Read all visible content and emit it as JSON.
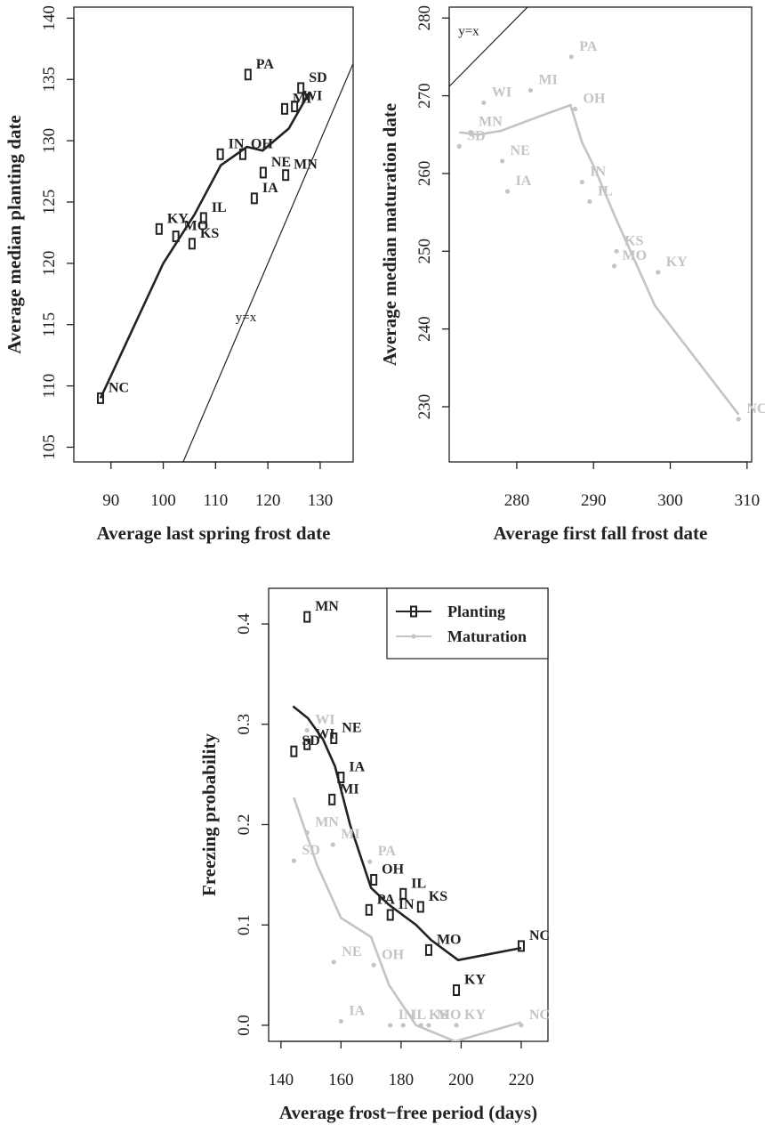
{
  "chart_data": [
    {
      "type": "scatter",
      "x_label": "Average last spring frost date",
      "y_label": "Average median planting date",
      "xlim": [
        82.9,
        136.3
      ],
      "ylim": [
        103.8,
        140.9
      ],
      "xticks": [
        90,
        100,
        110,
        120,
        130
      ],
      "yticks": [
        105,
        110,
        115,
        120,
        125,
        130,
        135,
        140
      ],
      "identity_line": true,
      "annotation": "y=x",
      "series": [
        {
          "color": "#222222",
          "marker": "rect",
          "labels": [
            "NC",
            "KY",
            "MO",
            "KS",
            "IL",
            "IN",
            "OH",
            "PA",
            "NE",
            "IA",
            "MN",
            "SD",
            "WI",
            "MI"
          ],
          "x": [
            88.0,
            99.2,
            102.4,
            105.5,
            107.7,
            110.9,
            115.2,
            116.2,
            119.1,
            117.4,
            123.4,
            126.3,
            125.1,
            123.2
          ],
          "y": [
            109.0,
            122.8,
            122.2,
            121.6,
            123.7,
            128.9,
            128.9,
            135.4,
            127.4,
            125.3,
            127.2,
            134.3,
            132.8,
            132.6
          ],
          "curve_x": [
            88,
            100,
            106,
            111,
            116,
            119,
            124,
            128
          ],
          "curve_y": [
            109,
            120,
            124,
            128,
            129.5,
            129.2,
            131,
            134
          ]
        }
      ]
    },
    {
      "type": "scatter",
      "x_label": "Average first fall frost date",
      "y_label": "Average median maturation date",
      "xlim": [
        271.2,
        310.6
      ],
      "ylim": [
        222.9,
        281.4
      ],
      "xticks": [
        280,
        290,
        300,
        310
      ],
      "yticks": [
        230,
        240,
        250,
        260,
        270,
        280
      ],
      "identity_line": true,
      "annotation": "y=x",
      "series": [
        {
          "color": "#c4c4c4",
          "marker": "dot",
          "labels": [
            "PA",
            "WI",
            "MI",
            "OH",
            "MN",
            "SD",
            "NE",
            "IA",
            "IN",
            "IL",
            "KS",
            "MO",
            "KY",
            "NC"
          ],
          "x": [
            287.1,
            275.7,
            281.8,
            287.6,
            274.0,
            272.5,
            278.1,
            278.8,
            288.5,
            289.5,
            293.0,
            292.7,
            298.4,
            308.9
          ],
          "y": [
            275.0,
            269.1,
            270.7,
            268.3,
            265.3,
            263.5,
            261.6,
            257.7,
            258.9,
            256.4,
            250.0,
            248.1,
            247.3,
            228.4
          ],
          "curve_x": [
            272.5,
            275,
            278,
            282,
            287,
            288.5,
            290,
            293,
            298,
            308.9
          ],
          "curve_y": [
            265.3,
            265,
            265.5,
            267,
            268.8,
            264,
            261,
            254,
            243,
            229
          ]
        }
      ]
    },
    {
      "type": "scatter",
      "x_label": "Average frost−free period (days)",
      "y_label": "Freezing probability",
      "xlim": [
        135.9,
        228.9
      ],
      "ylim": [
        -0.016,
        0.4355
      ],
      "xticks": [
        140,
        160,
        180,
        200,
        220
      ],
      "yticks": [
        {
          "value": 0,
          "label": "0.0"
        },
        0.1,
        0.2,
        0.3,
        0.4
      ],
      "legend": "top-right",
      "series": [
        {
          "name": "Planting",
          "color": "#222222",
          "marker": "rect",
          "labels": [
            "MN",
            "SD",
            "WI",
            "NE",
            "IA",
            "MI",
            "OH",
            "IL",
            "KS",
            "PA",
            "IN",
            "MO",
            "NC",
            "KY"
          ],
          "x": [
            148.7,
            144.3,
            148.7,
            157.6,
            160.0,
            157.0,
            170.9,
            180.7,
            186.5,
            169.3,
            176.4,
            189.2,
            220.0,
            198.4
          ],
          "y": [
            0.407,
            0.273,
            0.28,
            0.286,
            0.247,
            0.225,
            0.145,
            0.131,
            0.118,
            0.115,
            0.11,
            0.075,
            0.079,
            0.035
          ],
          "curve_x": [
            144,
            149,
            154,
            158,
            163,
            170,
            176,
            185,
            190,
            199,
            220
          ],
          "curve_y": [
            0.318,
            0.306,
            0.285,
            0.258,
            0.2,
            0.137,
            0.12,
            0.1,
            0.085,
            0.065,
            0.077
          ]
        },
        {
          "name": "Maturation",
          "color": "#c4c4c4",
          "marker": "dot",
          "labels": [
            "WI",
            "MN",
            "MI",
            "SD",
            "PA",
            "NE",
            "OH",
            "IA",
            "IN",
            "IL",
            "KS",
            "MO",
            "KY",
            "NC"
          ],
          "x": [
            148.7,
            148.7,
            157.3,
            144.3,
            169.6,
            157.6,
            170.9,
            160.0,
            176.4,
            180.7,
            186.6,
            189.2,
            198.4,
            220.0
          ],
          "y": [
            0.294,
            0.192,
            0.18,
            0.164,
            0.163,
            0.063,
            0.06,
            0.004,
            0,
            0,
            0,
            0,
            0,
            0
          ],
          "curve_x": [
            144.3,
            152,
            160,
            170,
            176,
            185,
            198,
            220
          ],
          "curve_y": [
            0.227,
            0.16,
            0.107,
            0.088,
            0.04,
            0.0,
            -0.016,
            0.003
          ]
        }
      ]
    }
  ]
}
